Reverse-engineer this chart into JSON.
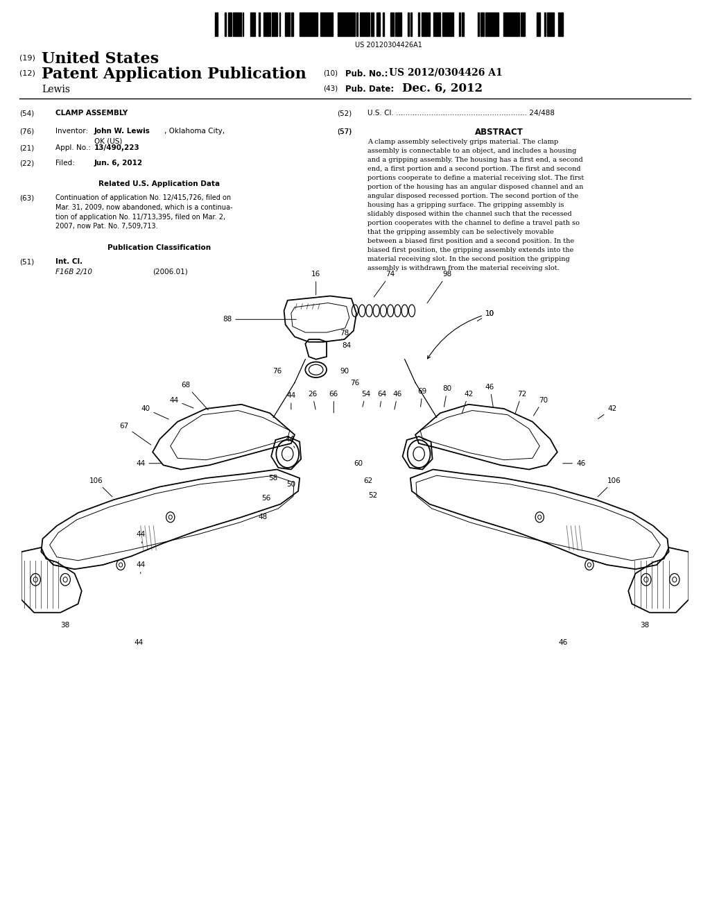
{
  "background_color": "#ffffff",
  "page_width": 10.24,
  "page_height": 13.2,
  "barcode_text": "US 20120304426A1",
  "header": {
    "title_19_label": "(19)",
    "title_19_text": "United States",
    "title_12_label": "(12)",
    "title_12_text": "Patent Application Publication",
    "title_10_label": "(10)",
    "title_10_pub": "Pub. No.:",
    "title_10_num": "US 2012/0304426 A1",
    "title_43_label": "(43)",
    "title_43_pub": "Pub. Date:",
    "title_43_date": "Dec. 6, 2012",
    "inventor_name": "Lewis"
  },
  "left_col": {
    "f54_label": "(54)",
    "f54_text": "CLAMP ASSEMBLY",
    "f76_label": "(76)",
    "f76_sub": "Inventor:",
    "f76_name_bold": "John W. Lewis",
    "f76_city": ", Oklahoma City,",
    "f76_country": "OK (US)",
    "f21_label": "(21)",
    "f21_sub": "Appl. No.:",
    "f21_val": "13/490,223",
    "f22_label": "(22)",
    "f22_sub": "Filed:",
    "f22_val": "Jun. 6, 2012",
    "related_title": "Related U.S. Application Data",
    "f63_label": "(63)",
    "f63_lines": [
      "Continuation of application No. 12/415,726, filed on",
      "Mar. 31, 2009, now abandoned, which is a continua-",
      "tion of application No. 11/713,395, filed on Mar. 2,",
      "2007, now Pat. No. 7,509,713."
    ],
    "pubclass_title": "Publication Classification",
    "f51_label": "(51)",
    "f51_name": "Int. Cl.",
    "f51_class": "F16B 2/10",
    "f51_year": "(2006.01)"
  },
  "right_col": {
    "f52_label": "(52)",
    "f52_text": "U.S. Cl. ........................................................ 24/488",
    "f57_label": "(57)",
    "f57_title": "ABSTRACT",
    "abstract_lines": [
      "A clamp assembly selectively grips material. The clamp",
      "assembly is connectable to an object, and includes a housing",
      "and a gripping assembly. The housing has a first end, a second",
      "end, a first portion and a second portion. The first and second",
      "portions cooperate to define a material receiving slot. The first",
      "portion of the housing has an angular disposed channel and an",
      "angular disposed recessed portion. The second portion of the",
      "housing has a gripping surface. The gripping assembly is",
      "slidably disposed within the channel such that the recessed",
      "portion cooperates with the channel to define a travel path so",
      "that the gripping assembly can be selectively movable",
      "between a biased first position and a second position. In the",
      "biased first position, the gripping assembly extends into the",
      "material receiving slot. In the second position the gripping",
      "assembly is withdrawn from the material receiving slot."
    ]
  }
}
